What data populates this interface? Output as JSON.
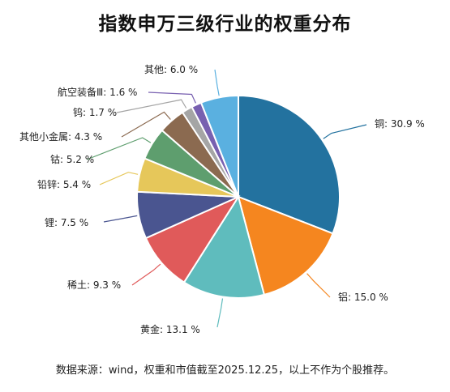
{
  "chart_data": {
    "type": "pie",
    "title": "指数申万三级行业的权重分布",
    "unit": "%",
    "slices": [
      {
        "label": "铜",
        "value": 30.9,
        "color": "#23729f"
      },
      {
        "label": "铝",
        "value": 15.0,
        "color": "#f5861f"
      },
      {
        "label": "黄金",
        "value": 13.1,
        "color": "#5fbcbd"
      },
      {
        "label": "稀土",
        "value": 9.3,
        "color": "#e05a5a"
      },
      {
        "label": "锂",
        "value": 7.5,
        "color": "#4a5590"
      },
      {
        "label": "铅锌",
        "value": 5.4,
        "color": "#e6c75a"
      },
      {
        "label": "钴",
        "value": 5.2,
        "color": "#5e9e6e"
      },
      {
        "label": "其他小金属",
        "value": 4.3,
        "color": "#8b6a50"
      },
      {
        "label": "钨",
        "value": 1.7,
        "color": "#a5a5a5"
      },
      {
        "label": "航空装备Ⅲ",
        "value": 1.6,
        "color": "#7860b0"
      },
      {
        "label": "其他",
        "value": 6.0,
        "color": "#5ab0e0"
      }
    ]
  },
  "footer": {
    "source": "数据来源：wind，权重和市值截至2025.12.25，以上不作为个股推荐。"
  }
}
